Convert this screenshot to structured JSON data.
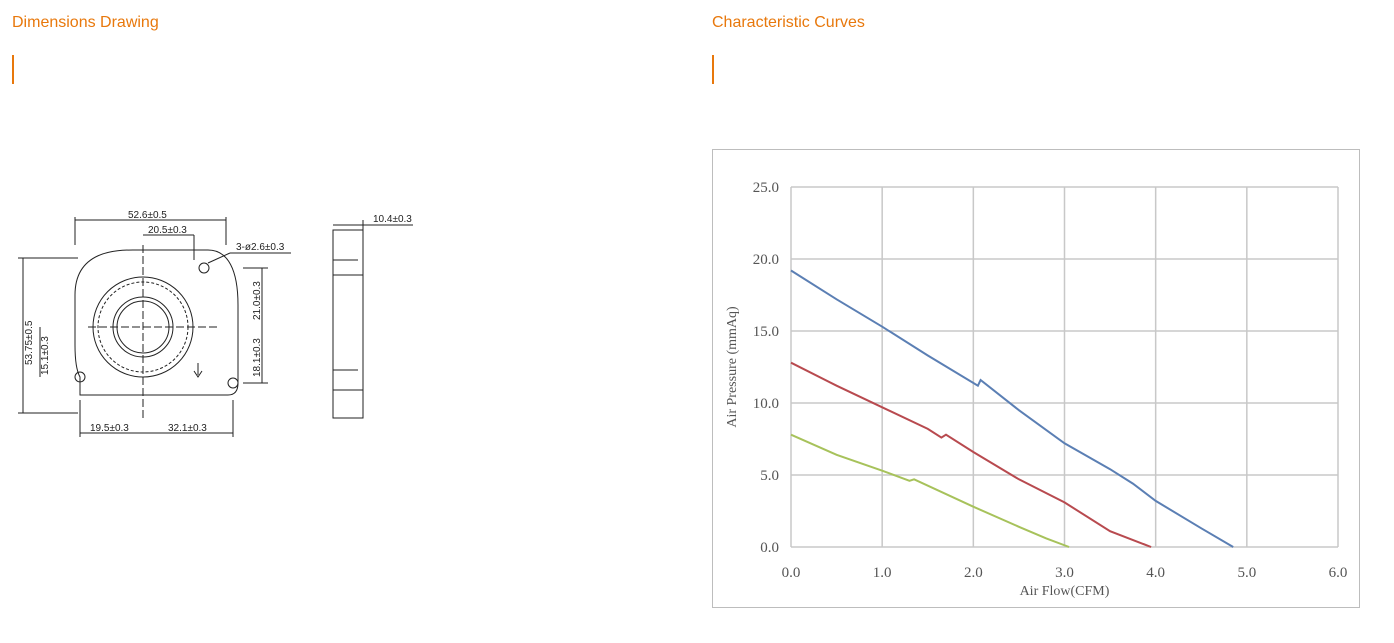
{
  "left_section": {
    "title": "Dimensions Drawing"
  },
  "right_section": {
    "title": "Characteristic Curves"
  },
  "drawing": {
    "dims": {
      "overall_width": "52.6±0.5",
      "hole_offset_top": "20.5±0.3",
      "holes": "3-ø2.6±0.3",
      "overall_height": "53.75±0.5",
      "hole_v_right_top": "21.0±0.3",
      "hole_v_right_bottom": "18.1±0.3",
      "hole_v_left": "15.1±0.3",
      "bottom_left": "19.5±0.3",
      "bottom_right": "32.1±0.3",
      "thickness": "10.4±0.3"
    }
  },
  "chart_data": {
    "type": "line",
    "xlabel": "Air Flow(CFM)",
    "ylabel": "Air Pressure (mmAq)",
    "xlim": [
      0,
      6
    ],
    "ylim": [
      0,
      25
    ],
    "xticks": [
      "0.0",
      "1.0",
      "2.0",
      "3.0",
      "4.0",
      "5.0",
      "6.0"
    ],
    "yticks": [
      "0.0",
      "5.0",
      "10.0",
      "15.0",
      "20.0",
      "25.0"
    ],
    "grid": true,
    "series": [
      {
        "color": "#5b7fb4",
        "points": [
          [
            0.0,
            19.2
          ],
          [
            0.5,
            17.2
          ],
          [
            1.0,
            15.3
          ],
          [
            1.5,
            13.3
          ],
          [
            2.05,
            11.2
          ],
          [
            2.08,
            11.6
          ],
          [
            2.5,
            9.5
          ],
          [
            3.0,
            7.2
          ],
          [
            3.5,
            5.4
          ],
          [
            3.75,
            4.4
          ],
          [
            4.0,
            3.2
          ],
          [
            4.5,
            1.3
          ],
          [
            4.85,
            0.0
          ]
        ]
      },
      {
        "color": "#b84a4f",
        "points": [
          [
            0.0,
            12.8
          ],
          [
            0.5,
            11.2
          ],
          [
            1.0,
            9.7
          ],
          [
            1.5,
            8.2
          ],
          [
            1.65,
            7.6
          ],
          [
            1.7,
            7.8
          ],
          [
            2.0,
            6.6
          ],
          [
            2.5,
            4.7
          ],
          [
            3.0,
            3.1
          ],
          [
            3.5,
            1.1
          ],
          [
            3.95,
            0.0
          ]
        ]
      },
      {
        "color": "#a7c25b",
        "points": [
          [
            0.0,
            7.8
          ],
          [
            0.5,
            6.4
          ],
          [
            1.0,
            5.3
          ],
          [
            1.3,
            4.6
          ],
          [
            1.35,
            4.7
          ],
          [
            2.0,
            2.8
          ],
          [
            2.5,
            1.4
          ],
          [
            2.8,
            0.6
          ],
          [
            3.05,
            0.0
          ]
        ]
      }
    ]
  }
}
